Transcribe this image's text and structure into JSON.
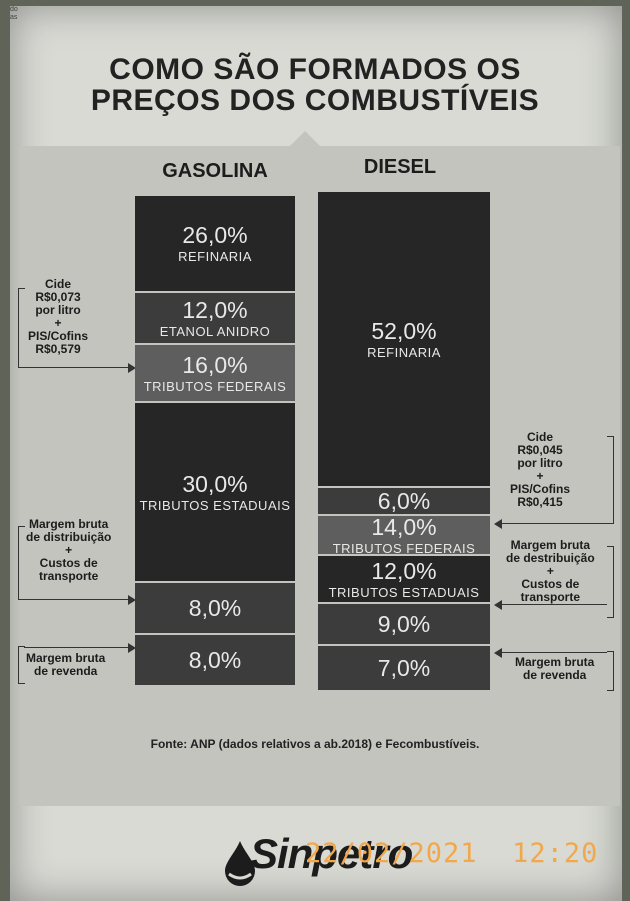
{
  "corner_text": "do\nas",
  "title_line1": "COMO SÃO FORMADOS OS",
  "title_line2": "PREÇOS DOS COMBUSTÍVEIS",
  "chart_data": {
    "type": "bar",
    "stacked": true,
    "categories": [
      "GASOLINA",
      "DIESEL"
    ],
    "series": [
      {
        "name": "REFINARIA",
        "values": [
          26.0,
          52.0
        ]
      },
      {
        "name": "ETANOL ANIDRO",
        "values": [
          12.0,
          null
        ]
      },
      {
        "name": "TRIBUTOS FEDERAIS",
        "values": [
          16.0,
          14.0
        ]
      },
      {
        "name": "TRIBUTOS ESTADUAIS",
        "values": [
          30.0,
          12.0
        ]
      },
      {
        "name": "",
        "values": [
          8.0,
          9.0
        ]
      },
      {
        "name": "",
        "values": [
          8.0,
          7.0
        ]
      }
    ],
    "diesel_extra_unlabeled": 6.0
  },
  "gasolina": {
    "header": "GASOLINA",
    "segments": [
      {
        "pct": "26,0%",
        "label": "REFINARIA"
      },
      {
        "pct": "12,0%",
        "label": "ETANOL ANIDRO"
      },
      {
        "pct": "16,0%",
        "label": "TRIBUTOS FEDERAIS"
      },
      {
        "pct": "30,0%",
        "label": "TRIBUTOS ESTADUAIS"
      },
      {
        "pct": "8,0%",
        "label": ""
      },
      {
        "pct": "8,0%",
        "label": ""
      }
    ]
  },
  "diesel": {
    "header": "DIESEL",
    "segments": [
      {
        "pct": "52,0%",
        "label": "REFINARIA"
      },
      {
        "pct": "6,0%",
        "label": ""
      },
      {
        "pct": "14,0%",
        "label": "TRIBUTOS FEDERAIS"
      },
      {
        "pct": "12,0%",
        "label": "TRIBUTOS ESTADUAIS"
      },
      {
        "pct": "9,0%",
        "label": ""
      },
      {
        "pct": "7,0%",
        "label": ""
      }
    ]
  },
  "notes": {
    "gas_federal": "Cide\nR$0,073\npor litro\n+\nPIS/Cofins\nR$0,579",
    "gas_distribution": "Margem bruta\nde distribuição\n+\nCustos de\ntransporte",
    "gas_resale": "Margem bruta\nde revenda",
    "diesel_federal": "Cide\nR$0,045\npor litro\n+\nPIS/Cofins\nR$0,415",
    "diesel_distribution": "Margem bruta\nde destribuição\n+\nCustos de\ntransporte",
    "diesel_resale": "Margem bruta\nde revenda"
  },
  "source": "Fonte: ANP (dados relativos a ab.2018) e Fecombustíveis.",
  "logo": "Sinpetro",
  "timestamp": "22/02/2021  12:20",
  "colors": {
    "dark": "#262626",
    "mid": "#3c3c3c",
    "light": "#5e5e5e",
    "stamp": "#f2a84a"
  }
}
